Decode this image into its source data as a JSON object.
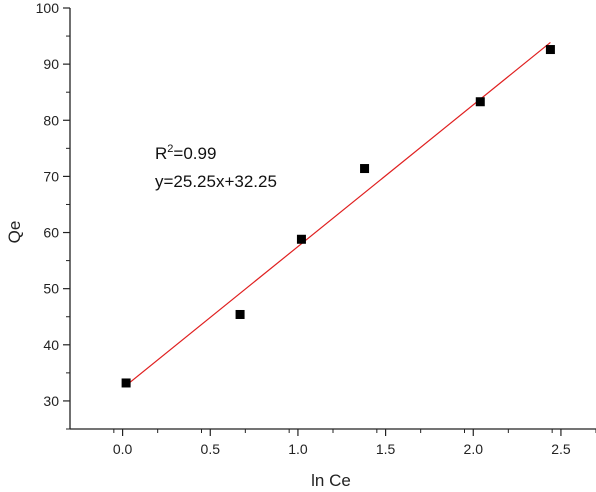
{
  "chart_data": {
    "type": "scatter",
    "xlabel": "ln Ce",
    "ylabel": "Qe",
    "xlim": [
      -0.3,
      2.7
    ],
    "ylim": [
      25,
      100
    ],
    "x_ticks": [
      0.0,
      0.5,
      1.0,
      1.5,
      2.0,
      2.5
    ],
    "x_tick_labels": [
      "0.0",
      "0.5",
      "1.0",
      "1.5",
      "2.0",
      "2.5"
    ],
    "y_ticks": [
      30,
      40,
      50,
      60,
      70,
      80,
      90,
      100
    ],
    "y_tick_labels": [
      "30",
      "40",
      "50",
      "60",
      "70",
      "80",
      "90",
      "100"
    ],
    "grid": false,
    "points": [
      {
        "x": 0.02,
        "y": 33.2
      },
      {
        "x": 0.67,
        "y": 45.4
      },
      {
        "x": 1.02,
        "y": 58.8
      },
      {
        "x": 1.38,
        "y": 71.4
      },
      {
        "x": 2.04,
        "y": 83.3
      },
      {
        "x": 2.44,
        "y": 92.6
      }
    ],
    "fit_line": {
      "slope": 25.25,
      "intercept": 32.25,
      "x_range": [
        0.02,
        2.44
      ]
    },
    "annotations": {
      "r2_prefix": "R",
      "r2_sup": "2",
      "r2_value": "=0.99",
      "equation": "y=25.25x+32.25"
    },
    "colors": {
      "points": "#000000",
      "fit_line": "#e02020",
      "axis": "#222222"
    }
  }
}
